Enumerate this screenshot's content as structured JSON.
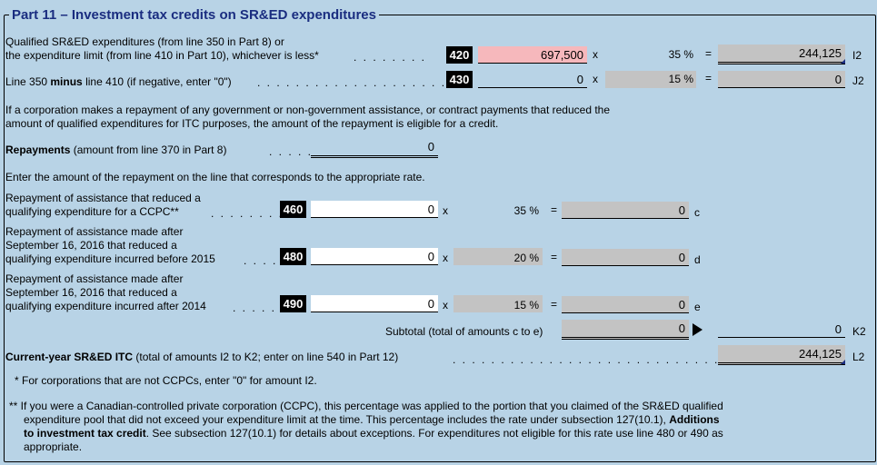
{
  "section": {
    "title": "Part 11 – Investment tax credits on SR&ED expenditures"
  },
  "row420": {
    "label_line1": "Qualified SR&ED expenditures (from line 350 in Part 8) or",
    "label_line2": "the expenditure limit (from line 410 in Part 10), whichever is less*",
    "code": "420",
    "amount": "697,500",
    "times": "x",
    "rate": "35 %",
    "equals": "=",
    "result": "244,125",
    "ref": "I2"
  },
  "row430": {
    "label_prefix": "Line 350 ",
    "label_bold": "minus",
    "label_suffix": " line 410 (if negative, enter \"0\")",
    "code": "430",
    "amount": "0",
    "times": "x",
    "rate": "15 %",
    "equals": "=",
    "result": "0",
    "ref": "J2"
  },
  "repayment_note": {
    "line1": "If a corporation makes a repayment of any government or non-government assistance, or contract payments that reduced the",
    "line2": "amount of qualified expenditures for ITC purposes, the amount of the repayment is eligible for a credit."
  },
  "repayments": {
    "label_bold": "Repayments",
    "label_rest": " (amount from line 370 in Part 8)",
    "value": "0"
  },
  "enter_note": "Enter the amount of the repayment on the line that corresponds to the appropriate rate.",
  "row460": {
    "label_line1": "Repayment of assistance that reduced a",
    "label_line2": "qualifying expenditure for a CCPC**",
    "code": "460",
    "amount": "0",
    "times": "x",
    "rate": "35 %",
    "equals": "=",
    "result": "0",
    "ref": "c"
  },
  "row480": {
    "label_line1": "Repayment of assistance made after",
    "label_line2": "September 16, 2016 that reduced a",
    "label_line3": "qualifying expenditure incurred before 2015",
    "code": "480",
    "amount": "0",
    "times": "x",
    "rate": "20 %",
    "equals": "=",
    "result": "0",
    "ref": "d"
  },
  "row490": {
    "label_line1": "Repayment of assistance made after",
    "label_line2": "September 16, 2016 that reduced a",
    "label_line3": "qualifying expenditure incurred after 2014",
    "code": "490",
    "amount": "0",
    "times": "x",
    "rate": "15 %",
    "equals": "=",
    "result": "0",
    "ref": "e"
  },
  "subtotal": {
    "label": "Subtotal (total of amounts c to e)",
    "value": "0",
    "result": "0",
    "ref": "K2"
  },
  "current_year": {
    "label_bold": "Current-year SR&ED ITC",
    "label_rest": " (total of amounts I2 to K2; enter on line 540 in Part 12)",
    "value": "244,125",
    "ref": "L2"
  },
  "footnote1": "* For corporations that are not CCPCs, enter \"0\" for amount I2.",
  "footnote2": {
    "line1": "** If you were a Canadian-controlled private corporation (CCPC), this percentage was applied to the portion that you claimed of the SR&ED qualified",
    "line2_prefix": "expenditure pool that did not exceed your expenditure limit at the time. This percentage includes the rate under subsection 127(10.1), ",
    "line2_bold": "Additions",
    "line3_bold": "to investment tax credit",
    "line3_rest": ". See subsection 127(10.1) for details about exceptions. For expenditures not eligible for this rate use line 480 or 490 as",
    "line4": "appropriate."
  },
  "colors": {
    "background": "#b8d3e6",
    "title": "#1a2d80",
    "input_highlight": "#f6b8bc",
    "readonly": "#c3c3c3"
  }
}
